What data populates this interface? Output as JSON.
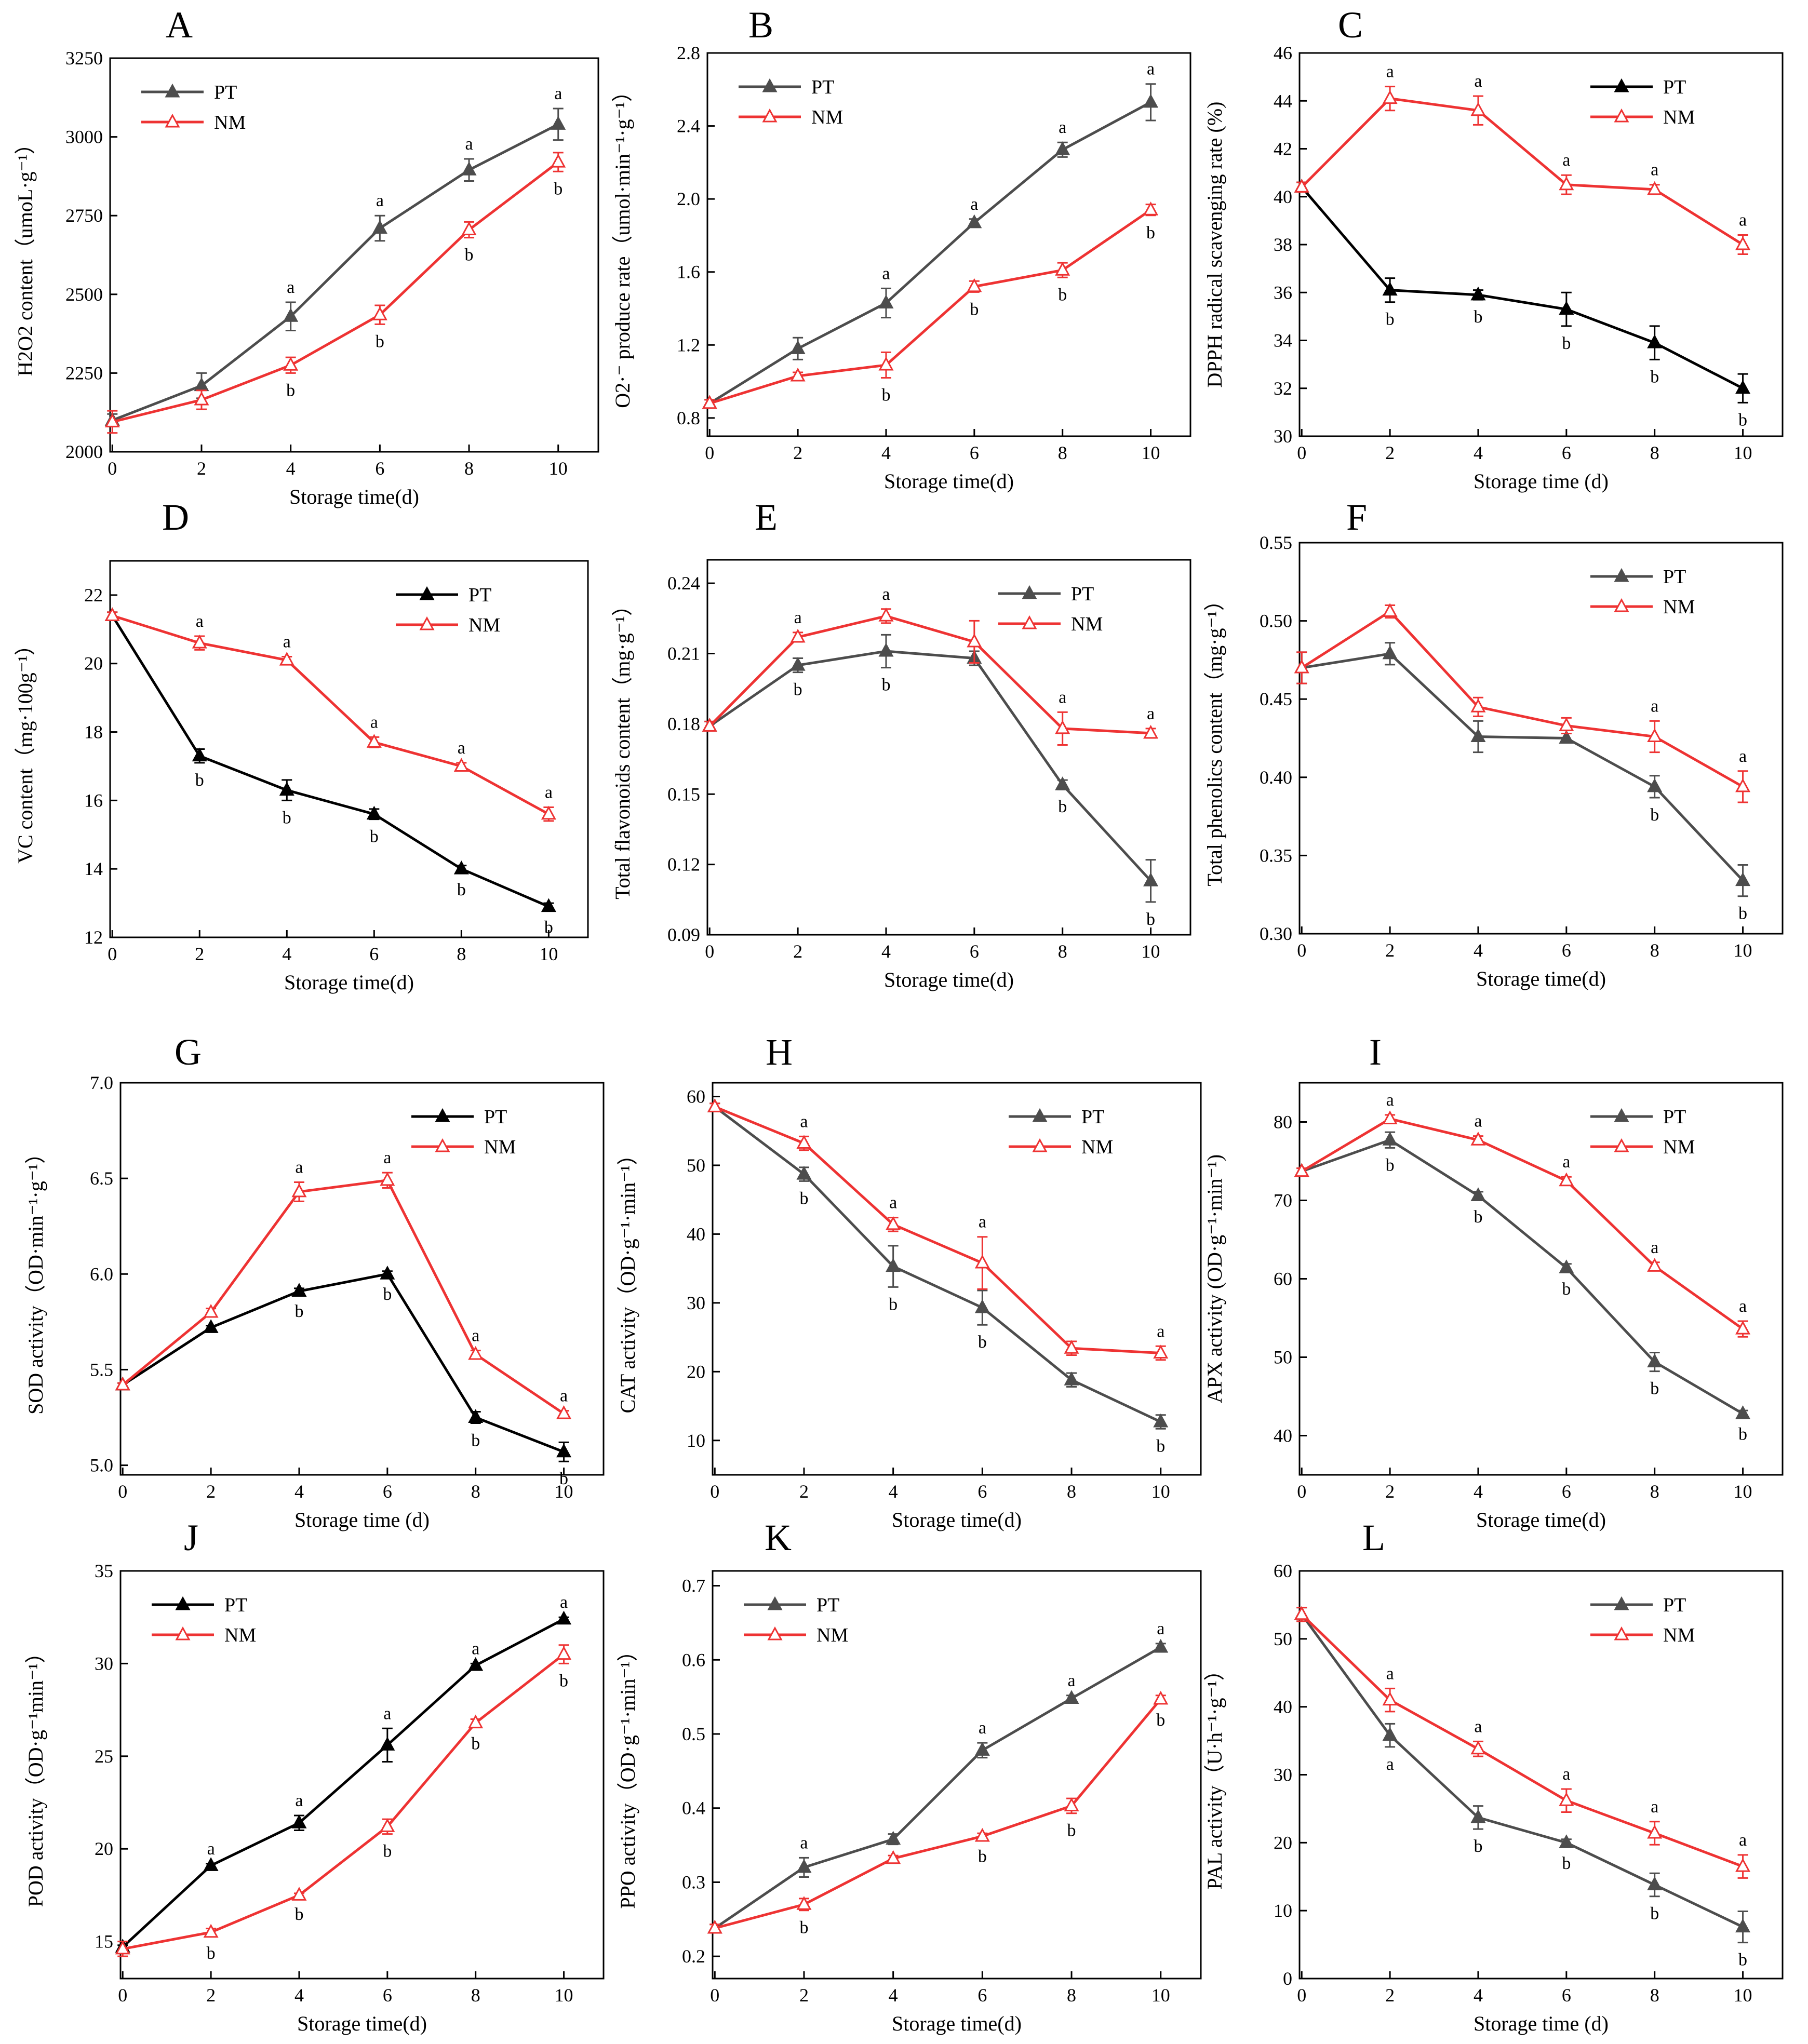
{
  "chart_data": [
    {
      "panel": "A",
      "type": "line",
      "xlabel": "Storage time(d)",
      "ylabel": "H2O2 content（umoL·g⁻¹）",
      "ylim": [
        2000,
        3250
      ],
      "yticks": [
        2000,
        2250,
        2500,
        2750,
        3000,
        3250
      ],
      "ytick_labels": [
        "2000",
        "2250",
        "2500",
        "2750",
        "3000",
        "3250"
      ],
      "x": [
        0,
        2,
        4,
        6,
        8,
        10
      ],
      "legend_position": "top-left",
      "series": [
        {
          "name": "PT",
          "color": "#4d4d4d",
          "values": [
            2100,
            2210,
            2430,
            2710,
            2895,
            3040
          ],
          "errors": [
            20,
            40,
            45,
            40,
            35,
            50
          ],
          "labels": [
            "",
            "",
            "a",
            "a",
            "a",
            "a"
          ]
        },
        {
          "name": "NM",
          "color": "#ee3333",
          "values": [
            2095,
            2165,
            2275,
            2435,
            2705,
            2920
          ],
          "errors": [
            35,
            30,
            25,
            30,
            25,
            30
          ],
          "labels": [
            "",
            "",
            "b",
            "b",
            "b",
            "b"
          ]
        }
      ]
    },
    {
      "panel": "B",
      "type": "line",
      "xlabel": "Storage time(d)",
      "ylabel": "O2·⁻ produce rate（umol·min⁻¹·g⁻¹）",
      "ylim": [
        0.7,
        2.8
      ],
      "yticks": [
        0.8,
        1.2,
        1.6,
        2.0,
        2.4,
        2.8
      ],
      "ytick_labels": [
        "0.8",
        "1.2",
        "1.6",
        "2.0",
        "2.4",
        "2.8"
      ],
      "x": [
        0,
        2,
        4,
        6,
        8,
        10
      ],
      "legend_position": "top-left",
      "series": [
        {
          "name": "PT",
          "color": "#4d4d4d",
          "values": [
            0.88,
            1.18,
            1.43,
            1.87,
            2.27,
            2.53
          ],
          "errors": [
            0.02,
            0.06,
            0.08,
            0.02,
            0.04,
            0.1
          ],
          "labels": [
            "",
            "",
            "a",
            "a",
            "a",
            "a"
          ]
        },
        {
          "name": "NM",
          "color": "#ee3333",
          "values": [
            0.88,
            1.03,
            1.09,
            1.52,
            1.61,
            1.94
          ],
          "errors": [
            0.02,
            0.02,
            0.07,
            0.03,
            0.04,
            0.03
          ],
          "labels": [
            "",
            "",
            "b",
            "b",
            "b",
            "b"
          ]
        }
      ]
    },
    {
      "panel": "C",
      "type": "line",
      "xlabel": "Storage time (d)",
      "ylabel": "DPPH radical scavenging rate (%)",
      "ylim": [
        30,
        46
      ],
      "yticks": [
        30,
        32,
        34,
        36,
        38,
        40,
        42,
        44,
        46
      ],
      "ytick_labels": [
        "30",
        "32",
        "34",
        "36",
        "38",
        "40",
        "42",
        "44",
        "46"
      ],
      "x": [
        0,
        2,
        4,
        6,
        8,
        10
      ],
      "legend_position": "top-right",
      "series": [
        {
          "name": "PT",
          "color": "#000000",
          "values": [
            40.4,
            36.1,
            35.9,
            35.3,
            33.9,
            32.0
          ],
          "errors": [
            0.2,
            0.5,
            0.2,
            0.7,
            0.7,
            0.6
          ],
          "labels": [
            "",
            "b",
            "b",
            "b",
            "b",
            "b"
          ]
        },
        {
          "name": "NM",
          "color": "#ee3333",
          "values": [
            40.4,
            44.1,
            43.6,
            40.5,
            40.3,
            38.0
          ],
          "errors": [
            0.2,
            0.5,
            0.6,
            0.4,
            0.2,
            0.4
          ],
          "labels": [
            "",
            "a",
            "a",
            "a",
            "a",
            "a"
          ]
        }
      ]
    },
    {
      "panel": "D",
      "type": "line",
      "xlabel": "Storage time(d)",
      "ylabel": "VC content（mg·100g⁻¹）",
      "ylim": [
        12,
        23
      ],
      "yticks": [
        12,
        14,
        16,
        18,
        20,
        22
      ],
      "ytick_labels": [
        "12",
        "14",
        "16",
        "18",
        "20",
        "22"
      ],
      "x": [
        0,
        2,
        4,
        6,
        8,
        10
      ],
      "legend_position": "top-right",
      "series": [
        {
          "name": "PT",
          "color": "#000000",
          "values": [
            21.4,
            17.3,
            16.3,
            15.6,
            14.0,
            12.9
          ],
          "errors": [
            0.1,
            0.2,
            0.3,
            0.15,
            0.1,
            0.1
          ],
          "labels": [
            "",
            "b",
            "b",
            "b",
            "b",
            "b"
          ]
        },
        {
          "name": "NM",
          "color": "#ee3333",
          "values": [
            21.4,
            20.6,
            20.1,
            17.7,
            17.0,
            15.6
          ],
          "errors": [
            0.1,
            0.2,
            0.1,
            0.15,
            0.1,
            0.2
          ],
          "labels": [
            "",
            "a",
            "a",
            "a",
            "a",
            "a"
          ]
        }
      ]
    },
    {
      "panel": "E",
      "type": "line",
      "xlabel": "Storage time(d)",
      "ylabel": "Total flavonoids content（mg·g⁻¹）",
      "ylim": [
        0.09,
        0.25
      ],
      "yticks": [
        0.09,
        0.12,
        0.15,
        0.18,
        0.21,
        0.24
      ],
      "ytick_labels": [
        "0.09",
        "0.12",
        "0.15",
        "0.18",
        "0.21",
        "0.24"
      ],
      "x": [
        0,
        2,
        4,
        6,
        8,
        10
      ],
      "legend_position": "top-right",
      "series": [
        {
          "name": "PT",
          "color": "#4d4d4d",
          "values": [
            0.179,
            0.205,
            0.211,
            0.208,
            0.154,
            0.113
          ],
          "errors": [
            0.002,
            0.003,
            0.007,
            0.003,
            0.002,
            0.009
          ],
          "labels": [
            "",
            "b",
            "b",
            "",
            "b",
            "b"
          ]
        },
        {
          "name": "NM",
          "color": "#ee3333",
          "values": [
            0.179,
            0.217,
            0.226,
            0.215,
            0.178,
            0.176
          ],
          "errors": [
            0.002,
            0.002,
            0.003,
            0.009,
            0.007,
            0.002
          ],
          "labels": [
            "",
            "a",
            "a",
            "",
            "a",
            "a"
          ]
        }
      ]
    },
    {
      "panel": "F",
      "type": "line",
      "xlabel": "Storage time(d)",
      "ylabel": "Total phenolics content（mg·g⁻¹）",
      "ylim": [
        0.3,
        0.55
      ],
      "yticks": [
        0.3,
        0.35,
        0.4,
        0.45,
        0.5,
        0.55
      ],
      "ytick_labels": [
        "0.30",
        "0.35",
        "0.40",
        "0.45",
        "0.50",
        "0.55"
      ],
      "x": [
        0,
        2,
        4,
        6,
        8,
        10
      ],
      "legend_position": "top-right",
      "series": [
        {
          "name": "PT",
          "color": "#4d4d4d",
          "values": [
            0.47,
            0.479,
            0.426,
            0.425,
            0.394,
            0.334
          ],
          "errors": [
            0.01,
            0.007,
            0.01,
            0.003,
            0.007,
            0.01
          ],
          "labels": [
            "",
            "",
            "",
            "",
            "b",
            "b"
          ]
        },
        {
          "name": "NM",
          "color": "#ee3333",
          "values": [
            0.47,
            0.506,
            0.445,
            0.433,
            0.426,
            0.394
          ],
          "errors": [
            0.01,
            0.004,
            0.006,
            0.005,
            0.01,
            0.01
          ],
          "labels": [
            "",
            "",
            "",
            "",
            "a",
            "a"
          ]
        }
      ]
    },
    {
      "panel": "G",
      "type": "line",
      "xlabel": "Storage time (d)",
      "ylabel": "SOD activity（OD·min⁻¹·g⁻¹）",
      "ylim": [
        4.95,
        7.0
      ],
      "yticks": [
        5.0,
        5.5,
        6.0,
        6.5,
        7.0
      ],
      "ytick_labels": [
        "5.0",
        "5.5",
        "6.0",
        "6.5",
        "7.0"
      ],
      "x": [
        0,
        2,
        4,
        6,
        8,
        10
      ],
      "legend_position": "top-right",
      "series": [
        {
          "name": "PT",
          "color": "#000000",
          "values": [
            5.42,
            5.72,
            5.91,
            6.0,
            5.25,
            5.07
          ],
          "errors": [
            0.01,
            0.01,
            0.015,
            0.015,
            0.03,
            0.05
          ],
          "labels": [
            "",
            "",
            "b",
            "b",
            "b",
            "b"
          ]
        },
        {
          "name": "NM",
          "color": "#ee3333",
          "values": [
            5.42,
            5.8,
            6.43,
            6.49,
            5.58,
            5.27
          ],
          "errors": [
            0.01,
            0.02,
            0.05,
            0.04,
            0.02,
            0.015
          ],
          "labels": [
            "",
            "",
            "a",
            "a",
            "a",
            "a"
          ]
        }
      ]
    },
    {
      "panel": "H",
      "type": "line",
      "xlabel": "Storage time(d)",
      "ylabel": "CAT activity（OD·g⁻¹·min⁻¹）",
      "ylim": [
        5,
        62
      ],
      "yticks": [
        10,
        20,
        30,
        40,
        50,
        60
      ],
      "ytick_labels": [
        "10",
        "20",
        "30",
        "40",
        "50",
        "60"
      ],
      "x": [
        0,
        2,
        4,
        6,
        8,
        10
      ],
      "legend_position": "top-right",
      "series": [
        {
          "name": "PT",
          "color": "#4d4d4d",
          "values": [
            58.5,
            48.7,
            35.3,
            29.3,
            18.8,
            12.7
          ],
          "errors": [
            0.5,
            1.0,
            3.0,
            2.5,
            1.0,
            1.0
          ],
          "labels": [
            "",
            "b",
            "b",
            "b",
            "",
            "b"
          ]
        },
        {
          "name": "NM",
          "color": "#ee3333",
          "values": [
            58.5,
            53.2,
            41.4,
            35.8,
            23.4,
            22.7
          ],
          "errors": [
            0.5,
            1.0,
            1.0,
            3.8,
            1.0,
            1.0
          ],
          "labels": [
            "",
            "a",
            "a",
            "a",
            "",
            "a"
          ]
        }
      ]
    },
    {
      "panel": "I",
      "type": "line",
      "xlabel": "Storage time(d)",
      "ylabel": "APX activity (OD·g⁻¹·min⁻¹)",
      "ylim": [
        35,
        85
      ],
      "yticks": [
        40,
        50,
        60,
        70,
        80
      ],
      "ytick_labels": [
        "40",
        "50",
        "60",
        "70",
        "80"
      ],
      "x": [
        0,
        2,
        4,
        6,
        8,
        10
      ],
      "legend_position": "top-right",
      "series": [
        {
          "name": "PT",
          "color": "#4d4d4d",
          "values": [
            73.7,
            77.7,
            70.6,
            61.4,
            49.4,
            42.8
          ],
          "errors": [
            0.4,
            1.0,
            0.5,
            0.5,
            1.2,
            0.4
          ],
          "labels": [
            "",
            "b",
            "b",
            "b",
            "b",
            "b"
          ]
        },
        {
          "name": "NM",
          "color": "#ee3333",
          "values": [
            73.7,
            80.4,
            77.7,
            72.5,
            61.6,
            53.6
          ],
          "errors": [
            0.4,
            0.5,
            0.5,
            0.5,
            0.5,
            1.0
          ],
          "labels": [
            "",
            "a",
            "a",
            "a",
            "a",
            "a"
          ]
        }
      ]
    },
    {
      "panel": "J",
      "type": "line",
      "xlabel": "Storage time(d)",
      "ylabel": "POD activity（OD·g⁻¹min⁻¹）",
      "ylim": [
        13,
        35
      ],
      "yticks": [
        15,
        20,
        25,
        30,
        35
      ],
      "ytick_labels": [
        "15",
        "20",
        "25",
        "30",
        "35"
      ],
      "x": [
        0,
        2,
        4,
        6,
        8,
        10
      ],
      "legend_position": "top-left",
      "series": [
        {
          "name": "PT",
          "color": "#000000",
          "values": [
            14.7,
            19.1,
            21.4,
            25.6,
            29.9,
            32.4
          ],
          "errors": [
            0.1,
            0.1,
            0.4,
            0.9,
            0.1,
            0.1
          ],
          "labels": [
            "",
            "a",
            "a",
            "a",
            "a",
            "a"
          ]
        },
        {
          "name": "NM",
          "color": "#ee3333",
          "values": [
            14.6,
            15.5,
            17.5,
            21.2,
            26.8,
            30.5
          ],
          "errors": [
            0.4,
            0.2,
            0.1,
            0.4,
            0.2,
            0.5
          ],
          "labels": [
            "",
            "b",
            "b",
            "b",
            "b",
            "b"
          ]
        }
      ]
    },
    {
      "panel": "K",
      "type": "line",
      "xlabel": "Storage time(d)",
      "ylabel": "PPO activity（OD·g⁻¹·min⁻¹）",
      "ylim": [
        0.17,
        0.72
      ],
      "yticks": [
        0.2,
        0.3,
        0.4,
        0.5,
        0.6,
        0.7
      ],
      "ytick_labels": [
        "0.2",
        "0.3",
        "0.4",
        "0.5",
        "0.6",
        "0.7"
      ],
      "x": [
        0,
        2,
        4,
        6,
        8,
        10
      ],
      "legend_position": "top-left",
      "series": [
        {
          "name": "PT",
          "color": "#4d4d4d",
          "values": [
            0.238,
            0.32,
            0.358,
            0.478,
            0.548,
            0.617
          ],
          "errors": [
            0.005,
            0.013,
            0.007,
            0.01,
            0.004,
            0.005
          ],
          "labels": [
            "",
            "a",
            "",
            "a",
            "a",
            "a"
          ]
        },
        {
          "name": "NM",
          "color": "#ee3333",
          "values": [
            0.238,
            0.27,
            0.332,
            0.362,
            0.403,
            0.547
          ],
          "errors": [
            0.005,
            0.008,
            0.004,
            0.004,
            0.01,
            0.005
          ],
          "labels": [
            "",
            "b",
            "",
            "b",
            "b",
            "b"
          ]
        }
      ]
    },
    {
      "panel": "L",
      "type": "line",
      "xlabel": "Storage time (d)",
      "ylabel": "PAL activity（U·h⁻¹·g⁻¹）",
      "ylim": [
        0,
        60
      ],
      "yticks": [
        0,
        10,
        20,
        30,
        40,
        50,
        60
      ],
      "ytick_labels": [
        "0",
        "10",
        "20",
        "30",
        "40",
        "50",
        "60"
      ],
      "x": [
        0,
        2,
        4,
        6,
        8,
        10
      ],
      "legend_position": "top-right",
      "series": [
        {
          "name": "PT",
          "color": "#4d4d4d",
          "values": [
            53.6,
            35.8,
            23.7,
            20.0,
            13.8,
            7.6
          ],
          "errors": [
            1.0,
            1.7,
            1.7,
            0.5,
            1.7,
            2.3
          ],
          "labels": [
            "",
            "a",
            "b",
            "b",
            "b",
            "b"
          ]
        },
        {
          "name": "NM",
          "color": "#ee3333",
          "values": [
            53.6,
            41.0,
            33.8,
            26.2,
            21.4,
            16.5
          ],
          "errors": [
            1.0,
            1.7,
            1.1,
            1.7,
            1.7,
            1.7
          ],
          "labels": [
            "",
            "a",
            "a",
            "a",
            "a",
            "a"
          ]
        }
      ]
    }
  ]
}
